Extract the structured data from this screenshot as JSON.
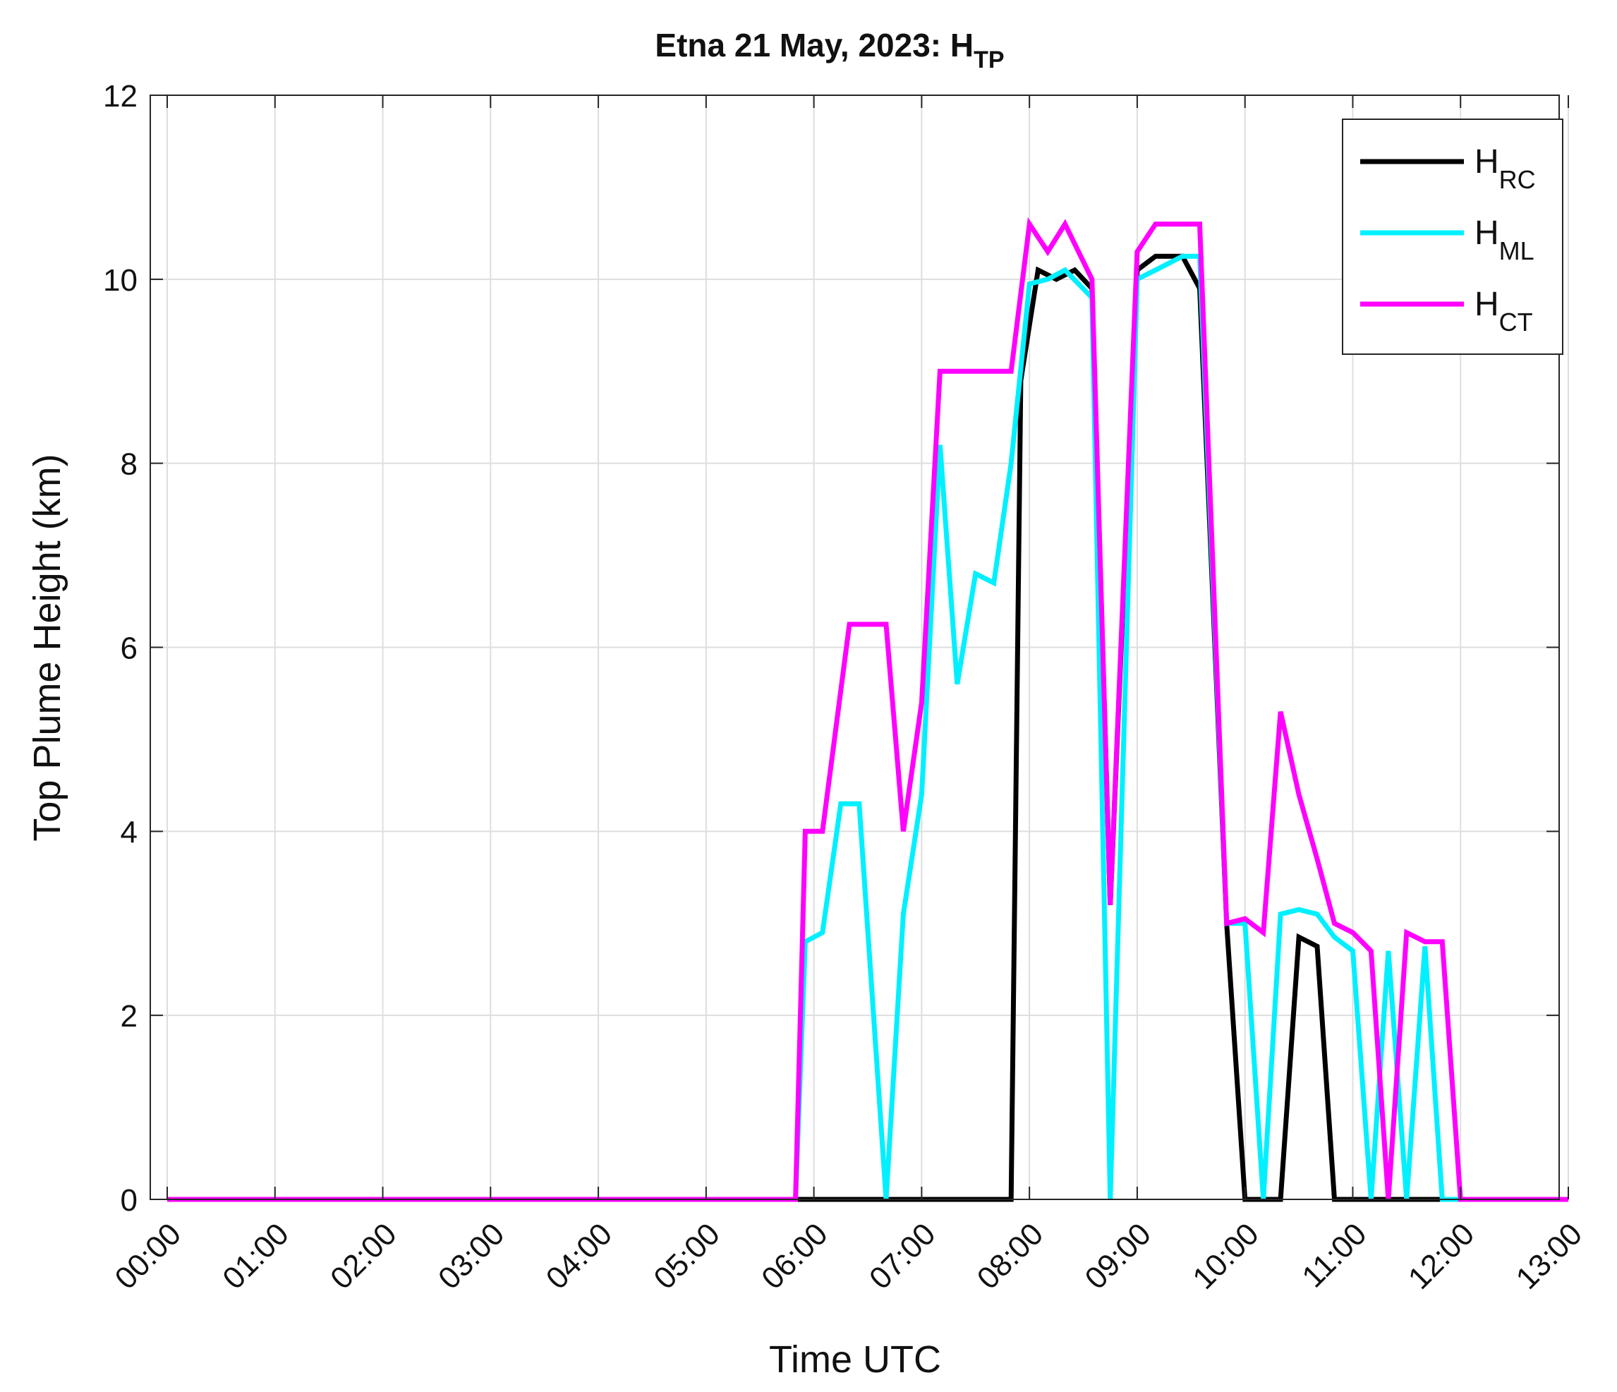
{
  "chart_data": {
    "type": "line",
    "title": {
      "main": "Etna 21 May, 2023: H",
      "subscript": "TP"
    },
    "xlabel": "Time UTC",
    "ylabel": "Top Plume Height (km)",
    "xlim": [
      0,
      13
    ],
    "ylim": [
      0,
      12
    ],
    "x_tick_values": [
      0,
      1,
      2,
      3,
      4,
      5,
      6,
      7,
      8,
      9,
      10,
      11,
      12,
      13
    ],
    "x_tick_labels": [
      "00:00",
      "01:00",
      "02:00",
      "03:00",
      "04:00",
      "05:00",
      "06:00",
      "07:00",
      "08:00",
      "09:00",
      "10:00",
      "11:00",
      "12:00",
      "13:00"
    ],
    "y_tick_values": [
      0,
      2,
      4,
      6,
      8,
      10,
      12
    ],
    "y_tick_labels": [
      "0",
      "2",
      "4",
      "6",
      "8",
      "10",
      "12"
    ],
    "grid": true,
    "legend_position": "top-right",
    "series": [
      {
        "name": "H",
        "name_sub": "RC",
        "color": "#000000",
        "x": [
          0,
          5.83,
          7.83,
          7.92,
          8.08,
          8.25,
          8.42,
          8.58,
          8.75,
          9.0,
          9.17,
          9.42,
          9.58,
          9.83,
          10.0,
          10.17,
          10.33,
          10.5,
          10.67,
          10.83,
          11.0,
          11.17,
          11.33,
          11.5,
          11.67,
          11.83,
          12.0,
          13.0
        ],
        "y": [
          0,
          0,
          0,
          8.9,
          10.1,
          10.0,
          10.1,
          9.9,
          3.2,
          10.1,
          10.25,
          10.25,
          9.9,
          3.0,
          0,
          0,
          0,
          2.85,
          2.75,
          0,
          0,
          0,
          0,
          0,
          0,
          0,
          0,
          0
        ]
      },
      {
        "name": "H",
        "name_sub": "ML",
        "color": "#00f0ff",
        "x": [
          0,
          5.83,
          5.92,
          6.08,
          6.25,
          6.42,
          6.67,
          6.83,
          7.0,
          7.17,
          7.33,
          7.5,
          7.67,
          7.83,
          8.0,
          8.17,
          8.33,
          8.58,
          8.75,
          9.0,
          9.17,
          9.42,
          9.58,
          9.83,
          10.0,
          10.17,
          10.33,
          10.5,
          10.67,
          10.83,
          11.0,
          11.17,
          11.33,
          11.5,
          11.67,
          11.83,
          12.0,
          13.0
        ],
        "y": [
          0,
          0,
          2.8,
          2.9,
          4.3,
          4.3,
          0,
          3.1,
          4.4,
          8.2,
          5.6,
          6.8,
          6.7,
          8.0,
          9.95,
          10.0,
          10.1,
          9.8,
          0,
          10.0,
          10.1,
          10.25,
          10.25,
          3.0,
          3.0,
          0,
          3.1,
          3.15,
          3.1,
          2.85,
          2.7,
          0,
          2.7,
          0,
          2.75,
          0,
          0,
          0
        ]
      },
      {
        "name": "H",
        "name_sub": "CT",
        "color": "#ff00ff",
        "x": [
          0,
          5.83,
          5.92,
          6.08,
          6.33,
          6.67,
          6.83,
          7.0,
          7.17,
          7.83,
          8.0,
          8.17,
          8.33,
          8.58,
          8.75,
          9.0,
          9.17,
          9.58,
          9.83,
          10.0,
          10.17,
          10.33,
          10.5,
          10.67,
          10.83,
          11.0,
          11.17,
          11.33,
          11.5,
          11.67,
          11.83,
          12.0,
          12.17,
          13.0
        ],
        "y": [
          0,
          0,
          4.0,
          4.0,
          6.25,
          6.25,
          4.0,
          5.4,
          9.0,
          9.0,
          10.6,
          10.3,
          10.6,
          10.0,
          3.2,
          10.3,
          10.6,
          10.6,
          3.0,
          3.05,
          2.9,
          5.3,
          4.4,
          3.7,
          3.0,
          2.9,
          2.7,
          0,
          2.9,
          2.8,
          2.8,
          0,
          0,
          0
        ]
      }
    ]
  }
}
